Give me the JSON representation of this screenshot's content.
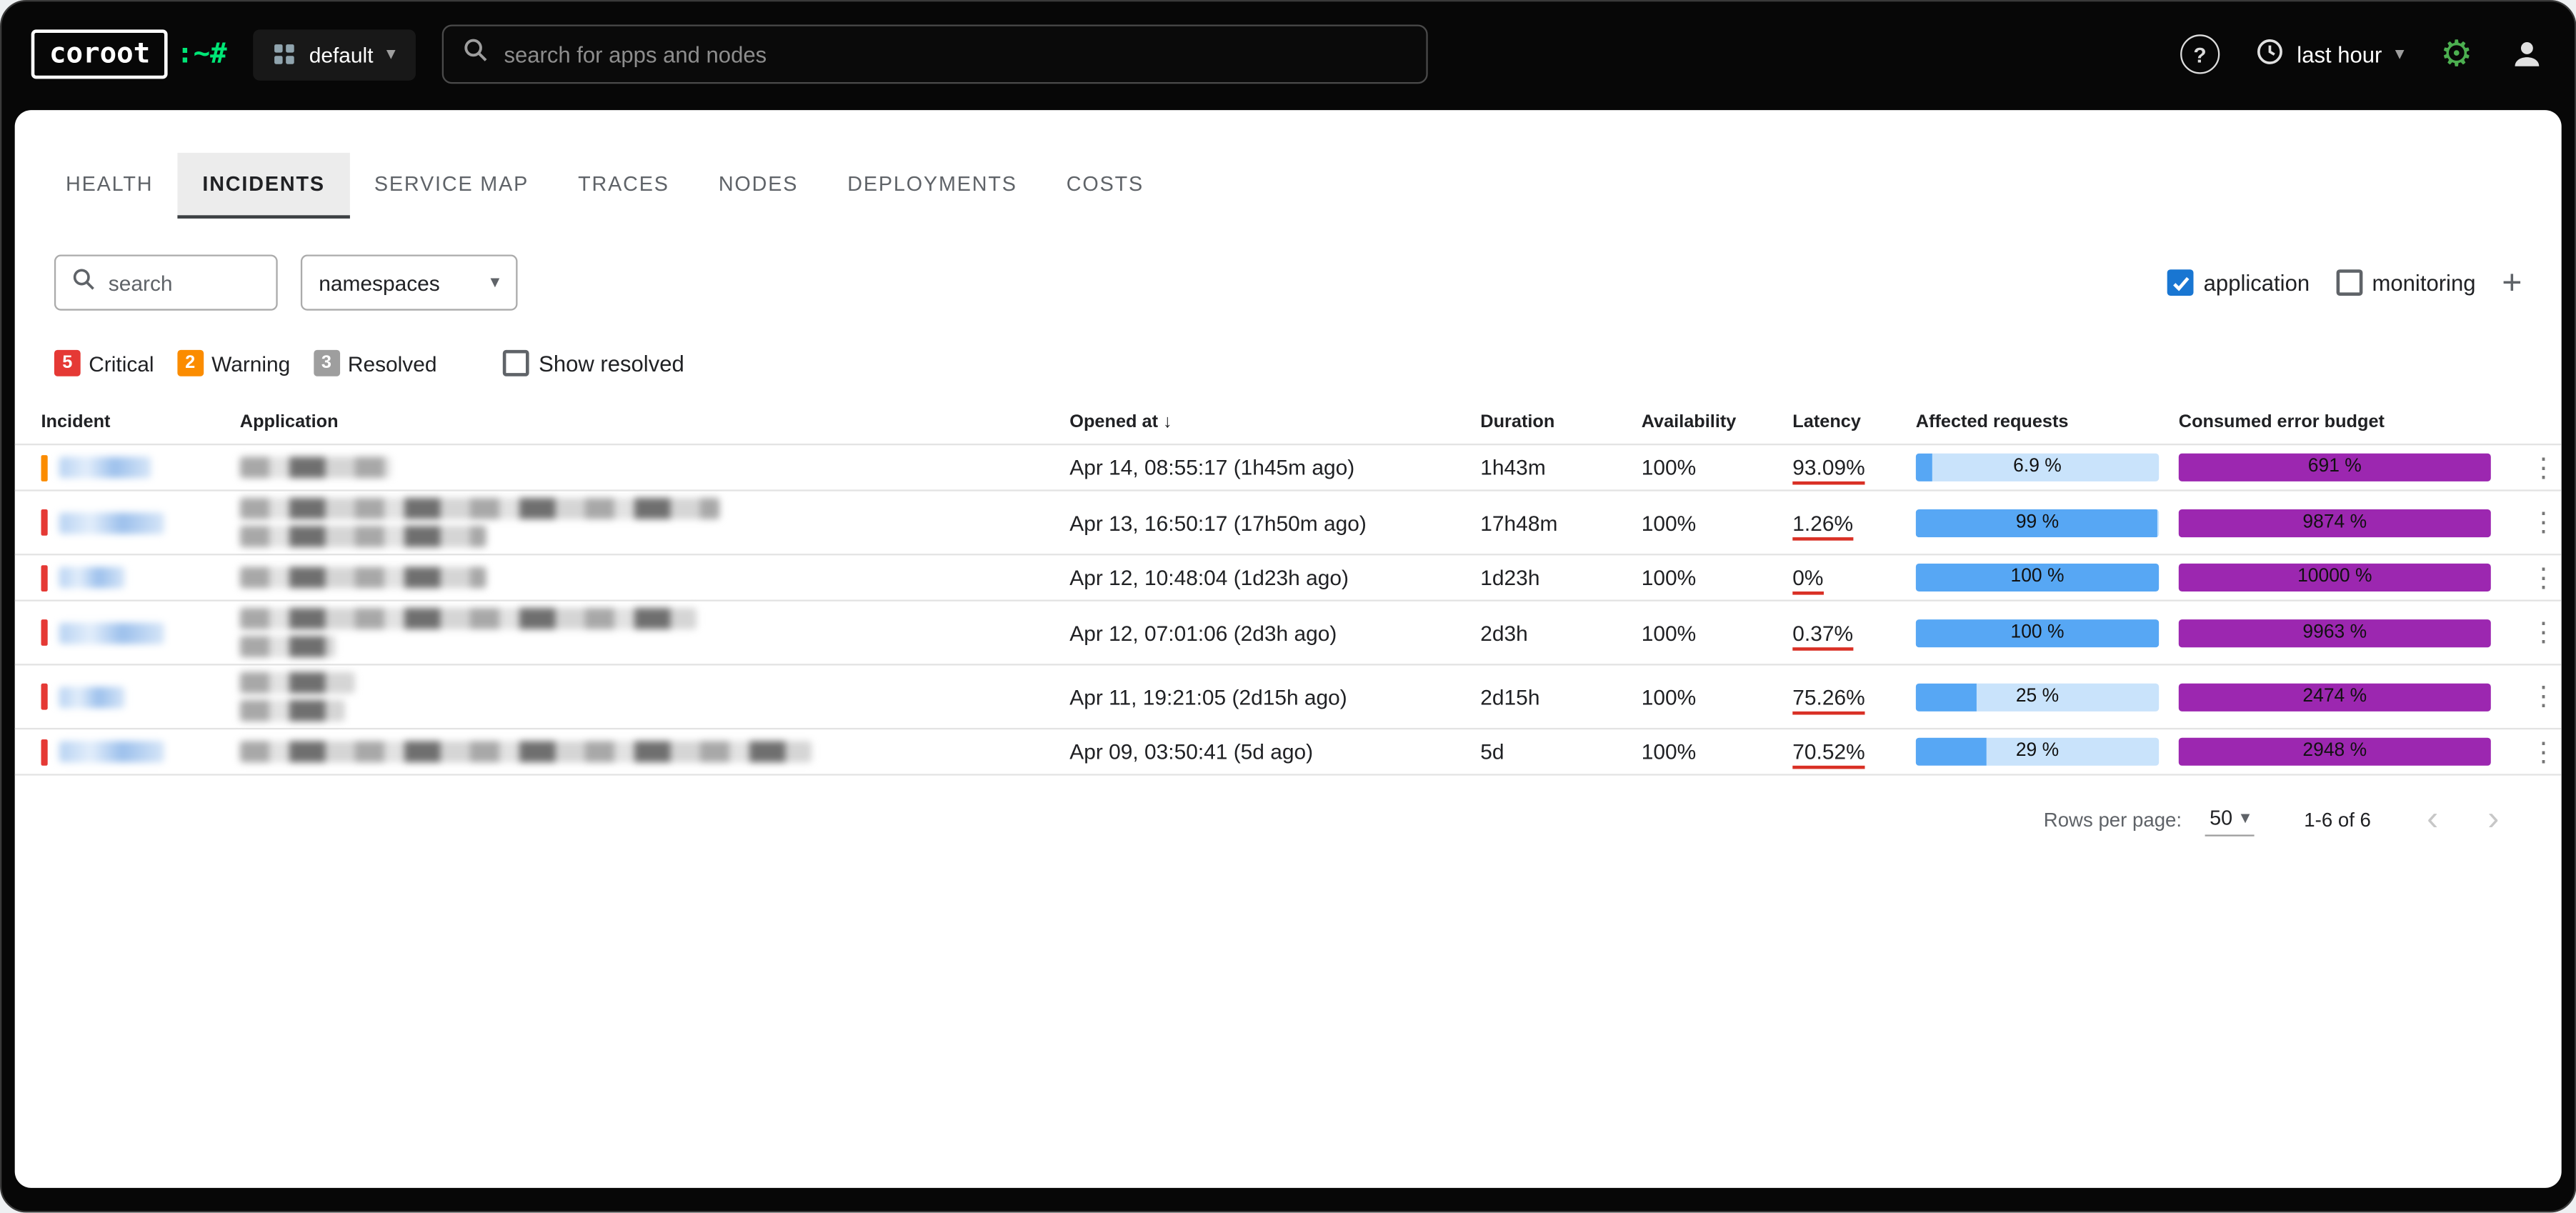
{
  "topbar": {
    "logo_text": "coroot",
    "logo_suffix": ":~#",
    "project": {
      "label": "default"
    },
    "search": {
      "placeholder": "search for apps and nodes"
    },
    "time_picker": {
      "label": "last hour"
    }
  },
  "glyphs": {
    "help": "?",
    "gear": "⚙",
    "chevron_down": "▾",
    "plus": "+",
    "kebab": "⋮",
    "sort_arrow": "↓",
    "page_prev": "‹",
    "page_next": "›"
  },
  "tabs": [
    {
      "label": "HEALTH"
    },
    {
      "label": "INCIDENTS",
      "active": true
    },
    {
      "label": "SERVICE MAP"
    },
    {
      "label": "TRACES"
    },
    {
      "label": "NODES"
    },
    {
      "label": "DEPLOYMENTS"
    },
    {
      "label": "COSTS"
    }
  ],
  "filters": {
    "search_placeholder": "search",
    "namespaces_label": "namespaces",
    "application_label": "application",
    "application_checked": true,
    "monitoring_label": "monitoring",
    "monitoring_checked": false
  },
  "severity_summary": [
    {
      "count": "5",
      "label": "Critical",
      "color": "#e53935"
    },
    {
      "count": "2",
      "label": "Warning",
      "color": "#fb8c00"
    },
    {
      "count": "3",
      "label": "Resolved",
      "color": "#9e9e9e"
    }
  ],
  "show_resolved": {
    "label": "Show resolved",
    "checked": false
  },
  "severity_colors": {
    "warning": "#fb8c00",
    "critical": "#e53935"
  },
  "bar_colors": {
    "affected_fill": "#57a7f4",
    "affected_bg": "#c9e3fb",
    "budget": "#9c27b0"
  },
  "table": {
    "columns": [
      "Incident",
      "Application",
      "Opened at",
      "Duration",
      "Availability",
      "Latency",
      "Affected requests",
      "Consumed error budget"
    ],
    "rows": [
      {
        "severity": "warning",
        "opened_at": "Apr 14, 08:55:17 (1h45m ago)",
        "duration": "1h43m",
        "availability": "100%",
        "latency": "93.09%",
        "affected_requests_pct": 6.9,
        "affected_requests_label": "6.9 %",
        "error_budget_pct": 691,
        "error_budget_label": "691 %"
      },
      {
        "severity": "critical",
        "opened_at": "Apr 13, 16:50:17 (17h50m ago)",
        "duration": "17h48m",
        "availability": "100%",
        "latency": "1.26%",
        "affected_requests_pct": 99,
        "affected_requests_label": "99 %",
        "error_budget_pct": 9874,
        "error_budget_label": "9874 %"
      },
      {
        "severity": "critical",
        "opened_at": "Apr 12, 10:48:04 (1d23h ago)",
        "duration": "1d23h",
        "availability": "100%",
        "latency": "0%",
        "affected_requests_pct": 100,
        "affected_requests_label": "100 %",
        "error_budget_pct": 10000,
        "error_budget_label": "10000 %"
      },
      {
        "severity": "critical",
        "opened_at": "Apr 12, 07:01:06 (2d3h ago)",
        "duration": "2d3h",
        "availability": "100%",
        "latency": "0.37%",
        "affected_requests_pct": 100,
        "affected_requests_label": "100 %",
        "error_budget_pct": 9963,
        "error_budget_label": "9963 %"
      },
      {
        "severity": "critical",
        "opened_at": "Apr 11, 19:21:05 (2d15h ago)",
        "duration": "2d15h",
        "availability": "100%",
        "latency": "75.26%",
        "affected_requests_pct": 25,
        "affected_requests_label": "25 %",
        "error_budget_pct": 2474,
        "error_budget_label": "2474 %"
      },
      {
        "severity": "critical",
        "opened_at": "Apr 09, 03:50:41 (5d ago)",
        "duration": "5d",
        "availability": "100%",
        "latency": "70.52%",
        "affected_requests_pct": 29,
        "affected_requests_label": "29 %",
        "error_budget_pct": 2948,
        "error_budget_label": "2948 %"
      }
    ]
  },
  "pagination": {
    "rows_per_page_label": "Rows per page:",
    "rows_per_page_value": "50",
    "range": "1-6 of 6"
  }
}
